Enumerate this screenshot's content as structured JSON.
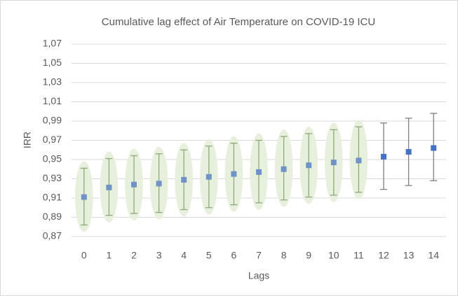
{
  "chart_data": {
    "type": "errorpoint",
    "title": "Cumulative lag effect of Air Temperature on COVID-19 ICU",
    "x_label": "Lags",
    "y_label": "IRR",
    "categories": [
      "0",
      "1",
      "2",
      "3",
      "4",
      "5",
      "6",
      "7",
      "8",
      "9",
      "10",
      "11",
      "12",
      "13",
      "14"
    ],
    "values": [
      0.911,
      0.921,
      0.924,
      0.925,
      0.929,
      0.932,
      0.935,
      0.937,
      0.94,
      0.944,
      0.947,
      0.949,
      0.953,
      0.958,
      0.962
    ],
    "lower": [
      0.882,
      0.892,
      0.894,
      0.895,
      0.898,
      0.9,
      0.903,
      0.905,
      0.908,
      0.911,
      0.913,
      0.916,
      0.919,
      0.923,
      0.928
    ],
    "upper": [
      0.941,
      0.951,
      0.954,
      0.956,
      0.96,
      0.964,
      0.967,
      0.97,
      0.974,
      0.977,
      0.981,
      0.984,
      0.988,
      0.993,
      0.998
    ],
    "point_colors": [
      "#6f93c9",
      "#6f93c9",
      "#6f93c9",
      "#6f93c9",
      "#6f93c9",
      "#6f93c9",
      "#6f93c9",
      "#6f93c9",
      "#6f93c9",
      "#6f93c9",
      "#6f93c9",
      "#6f93c9",
      "#4472c4",
      "#4472c4",
      "#4472c4"
    ],
    "bar_colors": [
      "#8fa878",
      "#8fa878",
      "#8fa878",
      "#8fa878",
      "#8fa878",
      "#8fa878",
      "#8fa878",
      "#8fa878",
      "#8fa878",
      "#8fa878",
      "#8fa878",
      "#8fa878",
      "#7f7f7f",
      "#7f7f7f",
      "#7f7f7f"
    ],
    "highlight": [
      true,
      true,
      true,
      true,
      true,
      true,
      true,
      true,
      true,
      true,
      true,
      true,
      false,
      false,
      false
    ],
    "highlight_color": "#e7f0dc",
    "ylim": [
      0.87,
      1.07
    ],
    "yticks": [
      {
        "value": 0.87,
        "label": "0,87"
      },
      {
        "value": 0.89,
        "label": "0,89"
      },
      {
        "value": 0.91,
        "label": "0,91"
      },
      {
        "value": 0.93,
        "label": "0,93"
      },
      {
        "value": 0.95,
        "label": "0,95"
      },
      {
        "value": 0.97,
        "label": "0,97"
      },
      {
        "value": 0.99,
        "label": "0,99"
      },
      {
        "value": 1.01,
        "label": "1,01"
      },
      {
        "value": 1.03,
        "label": "1,03"
      },
      {
        "value": 1.05,
        "label": "1,05"
      },
      {
        "value": 1.07,
        "label": "1,07"
      }
    ],
    "grid": true
  }
}
